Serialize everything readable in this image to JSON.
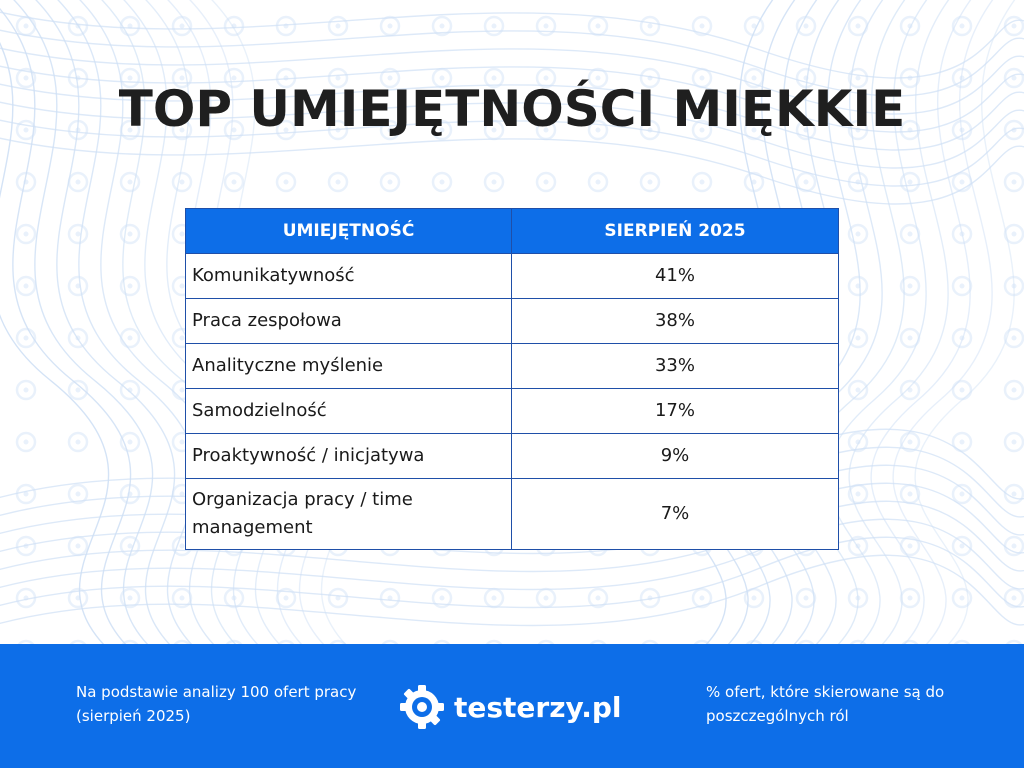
{
  "title": "TOP UMIEJĘTNOŚCI MIĘKKIE",
  "table": {
    "headers": [
      "UMIEJĘTNOŚĆ",
      "SIERPIEŃ 2025"
    ],
    "rows": [
      {
        "skill": "Komunikatywność",
        "value": "41%"
      },
      {
        "skill": "Praca zespołowa",
        "value": "38%"
      },
      {
        "skill": "Analityczne myślenie",
        "value": "33%"
      },
      {
        "skill": "Samodzielność",
        "value": "17%"
      },
      {
        "skill": "Proaktywność / inicjatywa",
        "value": "9%"
      },
      {
        "skill": "Organizacja pracy / time management",
        "value": "7%"
      }
    ]
  },
  "footer": {
    "left_text": "Na podstawie analizy 100 ofert pracy (sierpień 2025)",
    "logo_text": "testerzy.pl",
    "right_text": "% ofert, które skierowane są do poszczególnych ról"
  },
  "colors": {
    "accent": "#0d6ee8",
    "border": "#1f4fa8",
    "title": "#1f1f1f",
    "pattern": "#cfe0f5"
  },
  "icons": {
    "logo": "gear-icon",
    "pattern": "ring-icon"
  }
}
